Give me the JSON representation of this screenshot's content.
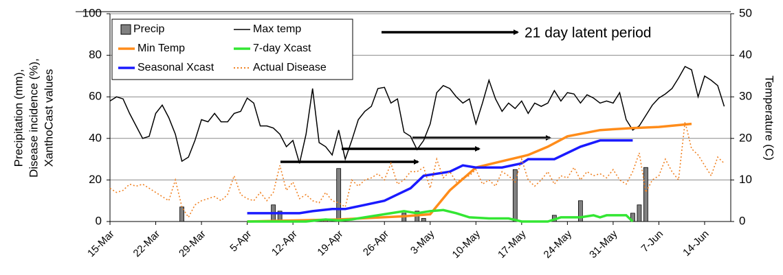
{
  "chart_data": {
    "type": "combo",
    "annotation": "21 day latent period",
    "ylabel": [
      "Precipitation (mm),",
      "Disease incidence (%),",
      "XanthoCast values"
    ],
    "y2label": "Temperature (C)",
    "xlim": [
      0,
      95
    ],
    "xticks": [
      {
        "value": 0,
        "label": "15-Mar"
      },
      {
        "value": 7,
        "label": "22-Mar"
      },
      {
        "value": 14,
        "label": "29-Mar"
      },
      {
        "value": 21,
        "label": "5-Apr"
      },
      {
        "value": 28,
        "label": "12-Apr"
      },
      {
        "value": 35,
        "label": "19-Apr"
      },
      {
        "value": 42,
        "label": "26-Apr"
      },
      {
        "value": 49,
        "label": "3-May"
      },
      {
        "value": 56,
        "label": "10-May"
      },
      {
        "value": 63,
        "label": "17-May"
      },
      {
        "value": 70,
        "label": "24-May"
      },
      {
        "value": 77,
        "label": "31-May"
      },
      {
        "value": 84,
        "label": "7-Jun"
      },
      {
        "value": 91,
        "label": "14-Jun"
      }
    ],
    "ylim": [
      0,
      100
    ],
    "yticks": [
      0,
      20,
      40,
      60,
      80,
      100
    ],
    "y2lim": [
      0,
      50
    ],
    "y2ticks": [
      0,
      10,
      20,
      30,
      40,
      50
    ],
    "grid": true,
    "series": [
      {
        "name": "Precip",
        "type": "bar",
        "color": "#808080",
        "x": [
          11,
          25,
          26,
          33,
          35,
          45,
          47,
          48,
          62,
          68,
          72,
          80,
          81,
          82
        ],
        "values": [
          7,
          8,
          5,
          1,
          25.5,
          4,
          5,
          1.5,
          25,
          3,
          10,
          4,
          8,
          26
        ]
      },
      {
        "name": "Max temp",
        "type": "line",
        "axis": "y2",
        "color": "#000000",
        "x": [
          0,
          1,
          2,
          3,
          4,
          5,
          6,
          7,
          8,
          9,
          10,
          11,
          12,
          13,
          14,
          15,
          16,
          17,
          18,
          19,
          20,
          21,
          22,
          23,
          24,
          25,
          26,
          27,
          28,
          29,
          30,
          31,
          32,
          33,
          34,
          35,
          36,
          37,
          38,
          39,
          40,
          41,
          42,
          43,
          44,
          45,
          46,
          47,
          48,
          49,
          50,
          51,
          52,
          53,
          54,
          55,
          56,
          57,
          58,
          59,
          60,
          61,
          62,
          63,
          64,
          65,
          66,
          67,
          68,
          69,
          70,
          71,
          72,
          73,
          74,
          75,
          76,
          77,
          78,
          79,
          80,
          81,
          82,
          83,
          84,
          85,
          86,
          87,
          88,
          89,
          90,
          91,
          92,
          93,
          94
        ],
        "values": [
          29,
          30,
          29.5,
          26,
          23,
          20,
          20.5,
          26,
          28,
          25,
          21,
          14.5,
          15.5,
          19.5,
          24.5,
          24,
          26,
          24,
          24,
          26,
          26.5,
          29.7,
          28.5,
          23,
          23,
          22.5,
          21,
          18,
          19.5,
          14,
          21,
          32,
          19,
          18,
          16,
          22,
          15,
          19.5,
          24.5,
          26.5,
          27.7,
          32,
          32.3,
          28.5,
          29.5,
          21.5,
          20.5,
          17.3,
          19.5,
          23.5,
          31,
          32.7,
          32,
          30,
          28.5,
          29.5,
          23.5,
          28.5,
          34,
          29.5,
          26.5,
          28.5,
          27.2,
          29,
          26,
          28.5,
          27.7,
          28.5,
          31.5,
          29,
          31,
          30.7,
          28.5,
          30.5,
          29.7,
          28.5,
          29,
          28.5,
          31,
          24.5,
          22,
          23,
          25.5,
          28,
          29.7,
          30.7,
          32,
          34.5,
          37.3,
          36.5,
          30,
          35,
          34,
          32.7,
          27.7
        ]
      },
      {
        "name": "Min Temp",
        "type": "line",
        "color": "#ff8c1a",
        "x": [
          21,
          35,
          45,
          49,
          52,
          56,
          60,
          64,
          67,
          70,
          75,
          80,
          84,
          89
        ],
        "values": [
          0,
          1,
          2.5,
          3.5,
          15,
          26,
          29,
          32,
          36,
          41,
          44,
          45,
          45.5,
          47
        ]
      },
      {
        "name": "7-day Xcast",
        "type": "line",
        "color": "#33e633",
        "x": [
          21,
          30,
          33,
          35,
          37,
          39,
          41,
          43,
          45,
          47,
          49,
          51,
          53,
          55,
          58,
          61,
          63,
          67,
          69,
          72,
          74,
          75,
          76,
          79,
          80
        ],
        "values": [
          0,
          0,
          1,
          0.5,
          1,
          2,
          3,
          4,
          5,
          4,
          5,
          5.5,
          4,
          2,
          1.5,
          1.5,
          0,
          0,
          2,
          2,
          3,
          2,
          3,
          3,
          0
        ]
      },
      {
        "name": "Seasonal Xcast",
        "type": "line",
        "color": "#1a1aff",
        "x": [
          21,
          29,
          31,
          34,
          36,
          39,
          42,
          44,
          46,
          48,
          50,
          52,
          54,
          56,
          60,
          63,
          64,
          68,
          70,
          72,
          75,
          80
        ],
        "values": [
          4,
          4,
          5,
          6,
          6,
          8,
          10,
          13,
          16,
          22,
          23,
          24,
          27,
          26,
          26,
          28,
          30,
          30,
          33,
          36,
          39,
          39
        ]
      },
      {
        "name": "Actual Disease",
        "type": "dotted",
        "color": "#f08020",
        "x": [
          0,
          1,
          2,
          3,
          4,
          5,
          6,
          7,
          8,
          9,
          10,
          11,
          12,
          13,
          14,
          15,
          16,
          17,
          18,
          19,
          20,
          21,
          22,
          23,
          24,
          25,
          26,
          27,
          28,
          29,
          30,
          31,
          32,
          33,
          34,
          35,
          36,
          37,
          38,
          39,
          40,
          41,
          42,
          43,
          44,
          45,
          46,
          47,
          48,
          49,
          50,
          51,
          52,
          53,
          54,
          55,
          56,
          57,
          58,
          59,
          60,
          61,
          62,
          63,
          64,
          65,
          66,
          67,
          68,
          69,
          70,
          71,
          72,
          73,
          74,
          75,
          76,
          77,
          78,
          79,
          80,
          81,
          82,
          83,
          84,
          85,
          86,
          87,
          88,
          89,
          90,
          91,
          92,
          93,
          94
        ],
        "values": [
          16,
          14,
          15,
          18,
          17,
          18,
          16,
          14,
          12,
          10,
          20,
          7,
          2,
          8,
          10,
          11,
          12,
          10,
          13,
          22,
          13,
          11,
          10,
          14,
          10,
          14,
          27,
          15,
          19,
          11,
          13,
          10,
          9,
          14,
          10,
          9,
          7,
          20,
          17,
          20,
          21,
          23,
          20,
          28,
          18,
          20,
          24,
          24,
          26,
          16,
          30,
          21,
          24,
          19,
          21,
          22,
          25,
          18,
          20,
          17,
          24,
          22,
          19,
          30,
          20,
          17,
          20,
          24,
          18,
          22,
          21,
          26,
          20,
          24,
          22,
          23,
          21,
          25,
          20,
          18,
          24,
          33,
          14,
          20,
          22,
          30,
          24,
          20,
          48,
          35,
          32,
          27,
          22,
          31,
          28
        ]
      }
    ]
  }
}
